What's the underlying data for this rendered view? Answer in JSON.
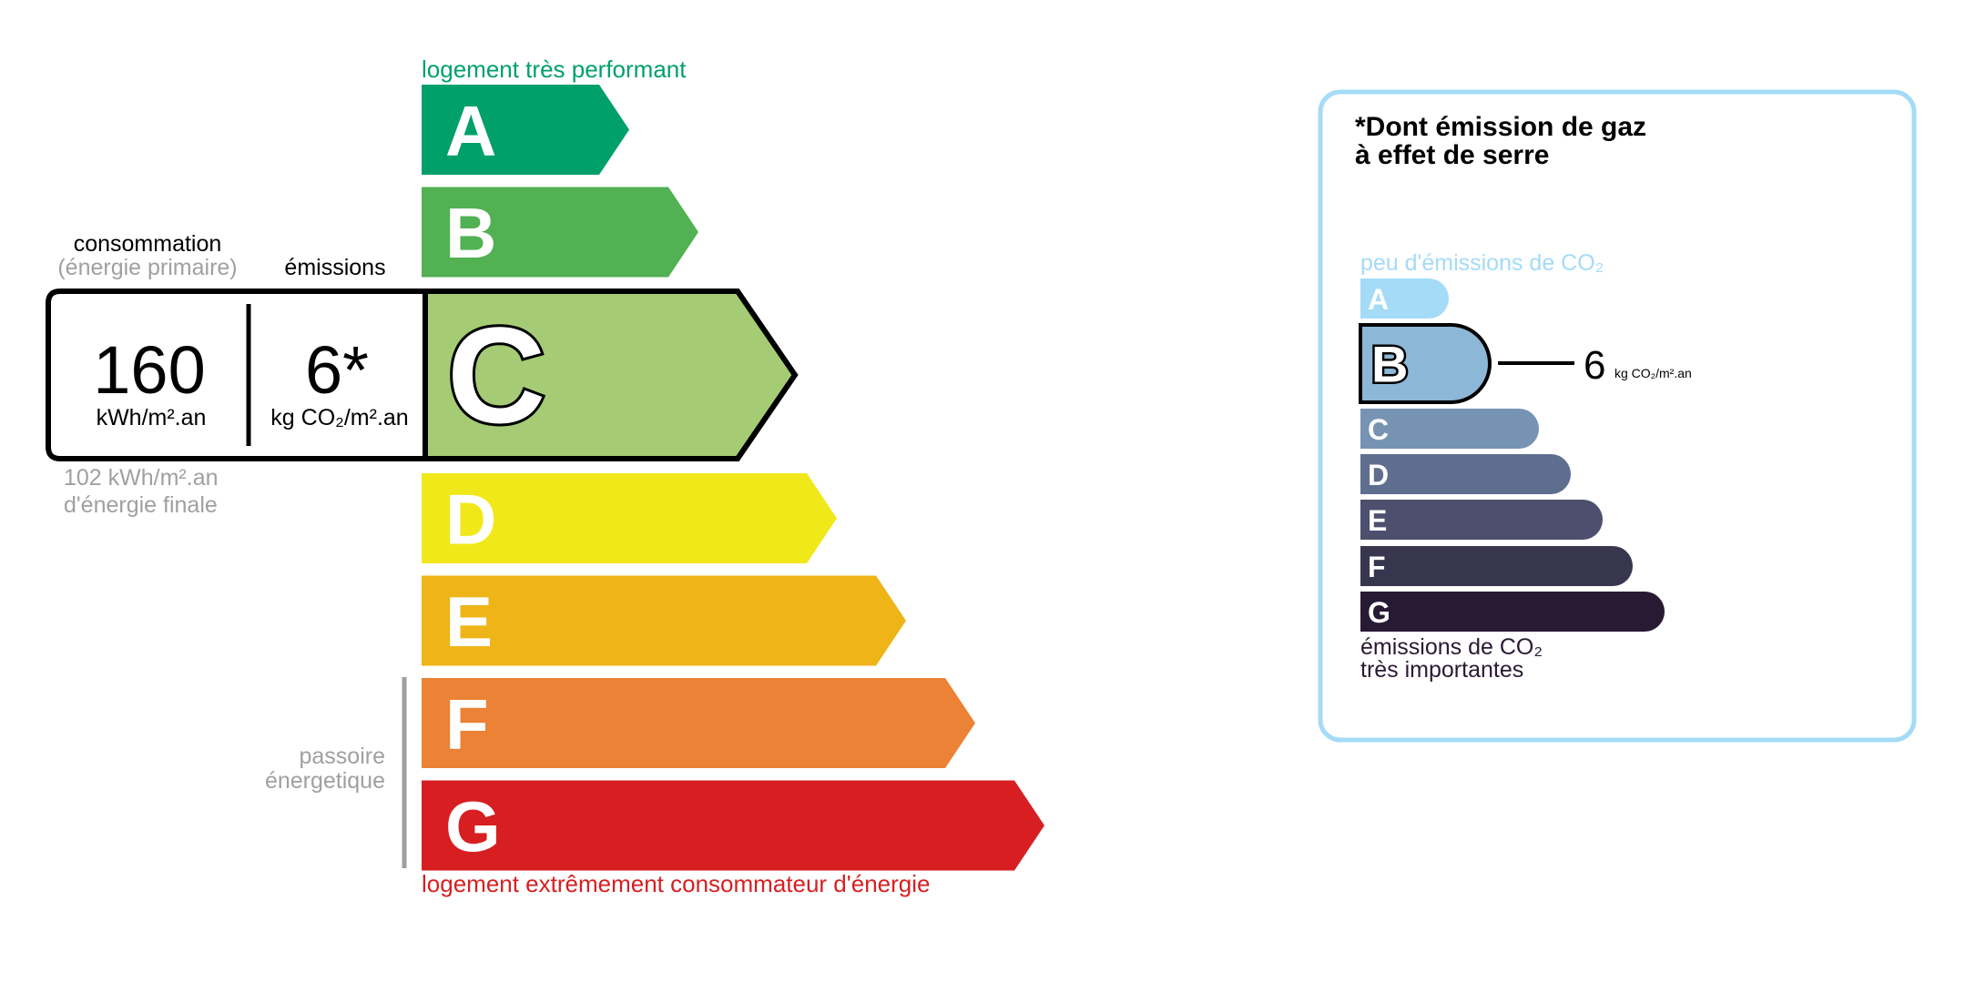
{
  "energy": {
    "top_label": "logement très performant",
    "bottom_label": "logement extrêmement consommateur d'énergie",
    "passoire_line1": "passoire",
    "passoire_line2": "énergetique",
    "active_class": "C",
    "classes": [
      {
        "letter": "A",
        "color": "#00a06b"
      },
      {
        "letter": "B",
        "color": "#52b153"
      },
      {
        "letter": "C",
        "color": "#a5cc74"
      },
      {
        "letter": "D",
        "color": "#f1e81a"
      },
      {
        "letter": "E",
        "color": "#efb518"
      },
      {
        "letter": "F",
        "color": "#eb8235"
      },
      {
        "letter": "G",
        "color": "#d71f21"
      }
    ],
    "colors": {
      "top_label": "#00a06b",
      "bottom_label": "#d71f21",
      "muted": "#a0a0a0"
    }
  },
  "readout": {
    "consumption_label": "consommation",
    "consumption_sub": "(énergie primaire)",
    "emissions_label": "émissions",
    "consumption_value": "160",
    "consumption_unit": "kWh/m².an",
    "emissions_value": "6*",
    "emissions_unit": "kg CO₂/m².an",
    "final_line1": "102 kWh/m².an",
    "final_line2": "d'énergie finale"
  },
  "ges": {
    "title_line1": "*Dont émission de gaz",
    "title_line2": "à effet de serre",
    "top_label": "peu d'émissions de CO₂",
    "bottom_line1": "émissions de CO₂",
    "bottom_line2": "très importantes",
    "active_class": "B",
    "value": "6",
    "unit": "kg CO₂/m².an",
    "classes": [
      {
        "letter": "A",
        "color": "#a4dbf7"
      },
      {
        "letter": "B",
        "color": "#8db7d6"
      },
      {
        "letter": "C",
        "color": "#7693b3"
      },
      {
        "letter": "D",
        "color": "#5f6e8f"
      },
      {
        "letter": "E",
        "color": "#4c506e"
      },
      {
        "letter": "F",
        "color": "#38364f"
      },
      {
        "letter": "G",
        "color": "#291a34"
      }
    ],
    "colors": {
      "border": "#a4dbf7",
      "top_label": "#a4dbf7",
      "bottom_label": "#291a34"
    }
  }
}
